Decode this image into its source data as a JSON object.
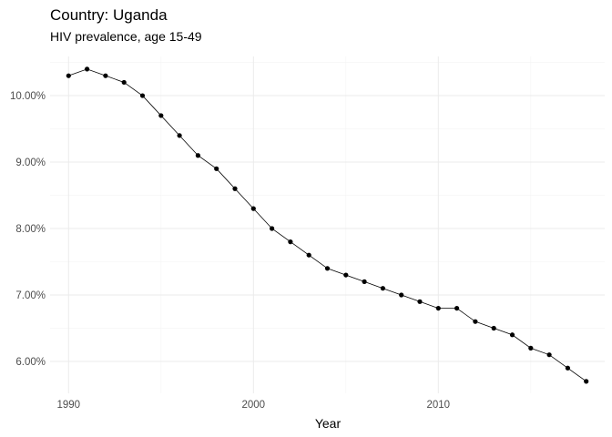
{
  "chart_data": {
    "type": "line",
    "title": "Country: Uganda",
    "subtitle": "HIV prevalence, age 15-49",
    "xlabel": "Year",
    "ylabel": "",
    "xlim": [
      1989,
      2019
    ],
    "ylim": [
      0.0552,
      0.1059
    ],
    "x_ticks": [
      1990,
      2000,
      2010
    ],
    "x_tick_labels": [
      "1990",
      "2000",
      "2010"
    ],
    "y_ticks": [
      0.06,
      0.07,
      0.08,
      0.09,
      0.1
    ],
    "y_tick_labels": [
      "6.00%",
      "7.00%",
      "8.00%",
      "9.00%",
      "10.00%"
    ],
    "grid": true,
    "legend": "none",
    "colors": {
      "line": "#000000",
      "point": "#000000",
      "grid": "#ebebeb"
    },
    "series": [
      {
        "x": [
          1990,
          1991,
          1992,
          1993,
          1994,
          1995,
          1996,
          1997,
          1998,
          1999,
          2000,
          2001,
          2002,
          2003,
          2004,
          2005,
          2006,
          2007,
          2008,
          2009,
          2010,
          2011,
          2012,
          2013,
          2014,
          2015,
          2016,
          2017,
          2018
        ],
        "values": [
          0.103,
          0.104,
          0.103,
          0.102,
          0.1,
          0.097,
          0.094,
          0.091,
          0.089,
          0.086,
          0.083,
          0.08,
          0.078,
          0.076,
          0.074,
          0.073,
          0.072,
          0.071,
          0.07,
          0.069,
          0.068,
          0.068,
          0.066,
          0.065,
          0.064,
          0.062,
          0.061,
          0.059,
          0.057
        ]
      }
    ]
  }
}
